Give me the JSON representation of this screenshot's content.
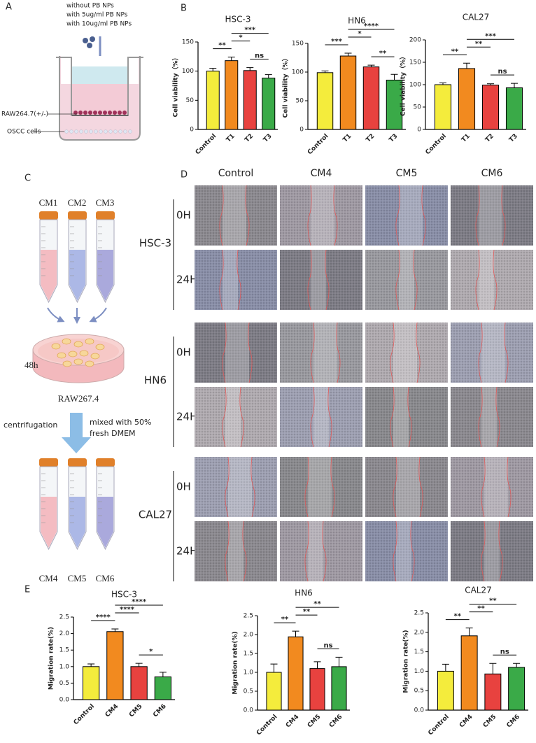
{
  "panel_labels": [
    "A",
    "B",
    "C",
    "D",
    "E"
  ],
  "panel_a": {
    "conditions": [
      "without PB NPs",
      "with 5ug/ml PB NPs",
      "with 10ug/ml PB NPs"
    ],
    "labels": [
      "RAW264.7(+/-)",
      "OSCC cells"
    ]
  },
  "panel_c": {
    "tubes_top": [
      "CM1",
      "CM2",
      "CM3"
    ],
    "time": "48h",
    "dish": "RAW267.4",
    "step": "centrifugation",
    "mix": [
      "mixed with 50%",
      "fresh DMEM"
    ],
    "tubes_bottom": [
      "CM4",
      "CM5",
      "CM6"
    ]
  },
  "panel_d": {
    "columns": [
      "Control",
      "CM4",
      "CM5",
      "CM6"
    ],
    "rows": [
      "HSC-3",
      "HN6",
      "CAL27"
    ],
    "times": [
      "0H",
      "24H"
    ]
  },
  "chart_data": [
    {
      "type": "bar",
      "title": "HSC-3",
      "y_label": "Cell viability（%）",
      "categories": [
        "Control",
        "T1",
        "T2",
        "T3"
      ],
      "values": [
        100,
        118,
        101,
        88
      ],
      "errors": [
        5,
        6,
        5,
        6
      ],
      "colors": [
        "#f4ec3c",
        "#f28a1f",
        "#e8423f",
        "#3aaa48"
      ],
      "ylim": [
        0,
        150
      ],
      "yticks": [
        0,
        50,
        100,
        150
      ],
      "comparisons": [
        {
          "pair": [
            0,
            1
          ],
          "label": "**"
        },
        {
          "pair": [
            2,
            3
          ],
          "label": "ns"
        },
        {
          "pair": [
            1,
            2
          ],
          "label": "*"
        },
        {
          "pair": [
            1,
            3
          ],
          "label": "***"
        }
      ]
    },
    {
      "type": "bar",
      "title": "HN6",
      "y_label": "Cell viability（%）",
      "categories": [
        "Control",
        "T1",
        "T2",
        "T3"
      ],
      "values": [
        99,
        128,
        109,
        86
      ],
      "errors": [
        3,
        5,
        3,
        10
      ],
      "colors": [
        "#f4ec3c",
        "#f28a1f",
        "#e8423f",
        "#3aaa48"
      ],
      "ylim": [
        0,
        150
      ],
      "yticks": [
        0,
        50,
        100,
        150
      ],
      "comparisons": [
        {
          "pair": [
            0,
            1
          ],
          "label": "***"
        },
        {
          "pair": [
            2,
            3
          ],
          "label": "**"
        },
        {
          "pair": [
            1,
            2
          ],
          "label": "*"
        },
        {
          "pair": [
            1,
            3
          ],
          "label": "****"
        }
      ]
    },
    {
      "type": "bar",
      "title": "CAL27",
      "y_label": "Cell viability（%）",
      "categories": [
        "Control",
        "T1",
        "T2",
        "T3"
      ],
      "values": [
        100,
        136,
        99,
        93
      ],
      "errors": [
        4,
        12,
        3,
        10
      ],
      "colors": [
        "#f4ec3c",
        "#f28a1f",
        "#e8423f",
        "#3aaa48"
      ],
      "ylim": [
        0,
        200
      ],
      "yticks": [
        0,
        50,
        100,
        150,
        200
      ],
      "comparisons": [
        {
          "pair": [
            0,
            1
          ],
          "label": "**"
        },
        {
          "pair": [
            2,
            3
          ],
          "label": "ns"
        },
        {
          "pair": [
            1,
            2
          ],
          "label": "**"
        },
        {
          "pair": [
            1,
            3
          ],
          "label": "***"
        }
      ]
    },
    {
      "type": "bar",
      "title": "HSC-3",
      "y_label": "Migration rate(%)",
      "categories": [
        "Control",
        "CM4",
        "CM5",
        "CM6"
      ],
      "values": [
        1.0,
        2.06,
        1.0,
        0.69
      ],
      "errors": [
        0.08,
        0.08,
        0.1,
        0.14
      ],
      "colors": [
        "#f4ec3c",
        "#f28a1f",
        "#e8423f",
        "#3aaa48"
      ],
      "ylim": [
        0,
        2.5
      ],
      "yticks": [
        {
          "value": 0,
          "label": "0.0"
        },
        0.5,
        {
          "value": 1,
          "label": "1.0"
        },
        1.5,
        {
          "value": 2,
          "label": "2.0"
        },
        2.5
      ],
      "comparisons": [
        {
          "pair": [
            0,
            1
          ],
          "label": "****"
        },
        {
          "pair": [
            2,
            3
          ],
          "label": "*"
        },
        {
          "pair": [
            1,
            2
          ],
          "label": "****"
        },
        {
          "pair": [
            1,
            3
          ],
          "label": "****"
        }
      ]
    },
    {
      "type": "bar",
      "title": "HN6",
      "y_label": "Migration rate(%)",
      "categories": [
        "Control",
        "CM4",
        "CM5",
        "CM6"
      ],
      "values": [
        1.0,
        1.94,
        1.1,
        1.15
      ],
      "errors": [
        0.22,
        0.15,
        0.18,
        0.25
      ],
      "colors": [
        "#f4ec3c",
        "#f28a1f",
        "#e8423f",
        "#3aaa48"
      ],
      "ylim": [
        0,
        2.5
      ],
      "yticks": [
        {
          "value": 0,
          "label": "0.0"
        },
        0.5,
        {
          "value": 1,
          "label": "1.0"
        },
        1.5,
        {
          "value": 2,
          "label": "2.0"
        },
        2.5
      ],
      "comparisons": [
        {
          "pair": [
            0,
            1
          ],
          "label": "**"
        },
        {
          "pair": [
            2,
            3
          ],
          "label": "ns"
        },
        {
          "pair": [
            1,
            2
          ],
          "label": "**"
        },
        {
          "pair": [
            1,
            3
          ],
          "label": "**"
        }
      ]
    },
    {
      "type": "bar",
      "title": "CAL27",
      "y_label": "Migration rate(%)",
      "categories": [
        "Control",
        "CM4",
        "CM5",
        "CM6"
      ],
      "values": [
        1.0,
        1.91,
        0.93,
        1.1
      ],
      "errors": [
        0.18,
        0.2,
        0.27,
        0.1
      ],
      "colors": [
        "#f4ec3c",
        "#f28a1f",
        "#e8423f",
        "#3aaa48"
      ],
      "ylim": [
        0,
        2.5
      ],
      "yticks": [
        {
          "value": 0,
          "label": "0.0"
        },
        0.5,
        {
          "value": 1,
          "label": "1.0"
        },
        1.5,
        {
          "value": 2,
          "label": "2.0"
        },
        2.5
      ],
      "comparisons": [
        {
          "pair": [
            0,
            1
          ],
          "label": "**"
        },
        {
          "pair": [
            2,
            3
          ],
          "label": "ns"
        },
        {
          "pair": [
            1,
            2
          ],
          "label": "**"
        },
        {
          "pair": [
            1,
            3
          ],
          "label": "**"
        }
      ]
    }
  ]
}
